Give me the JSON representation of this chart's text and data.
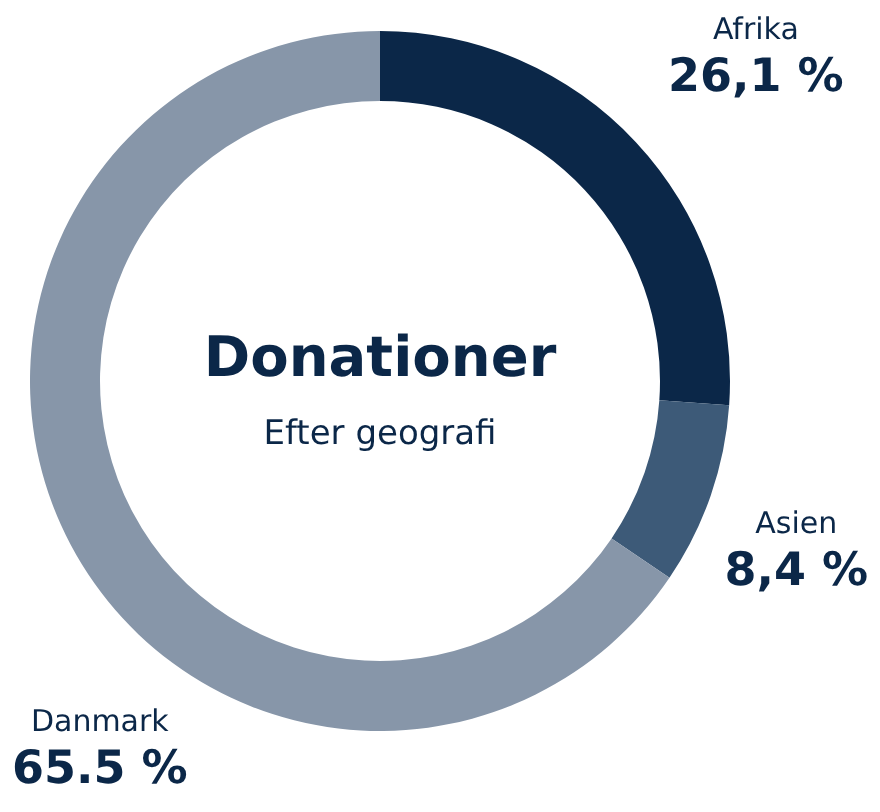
{
  "chart_data": {
    "type": "donut",
    "title": "Donationer",
    "subtitle": "Efter geografi",
    "categories": [
      "Afrika",
      "Asien",
      "Danmark"
    ],
    "values": [
      26.1,
      8.4,
      65.5
    ],
    "value_labels": [
      "26,1 %",
      "8,4 %",
      "65.5 %"
    ],
    "colors": [
      "#0b2748",
      "#3d5a78",
      "#8796a9"
    ],
    "legend": false
  }
}
